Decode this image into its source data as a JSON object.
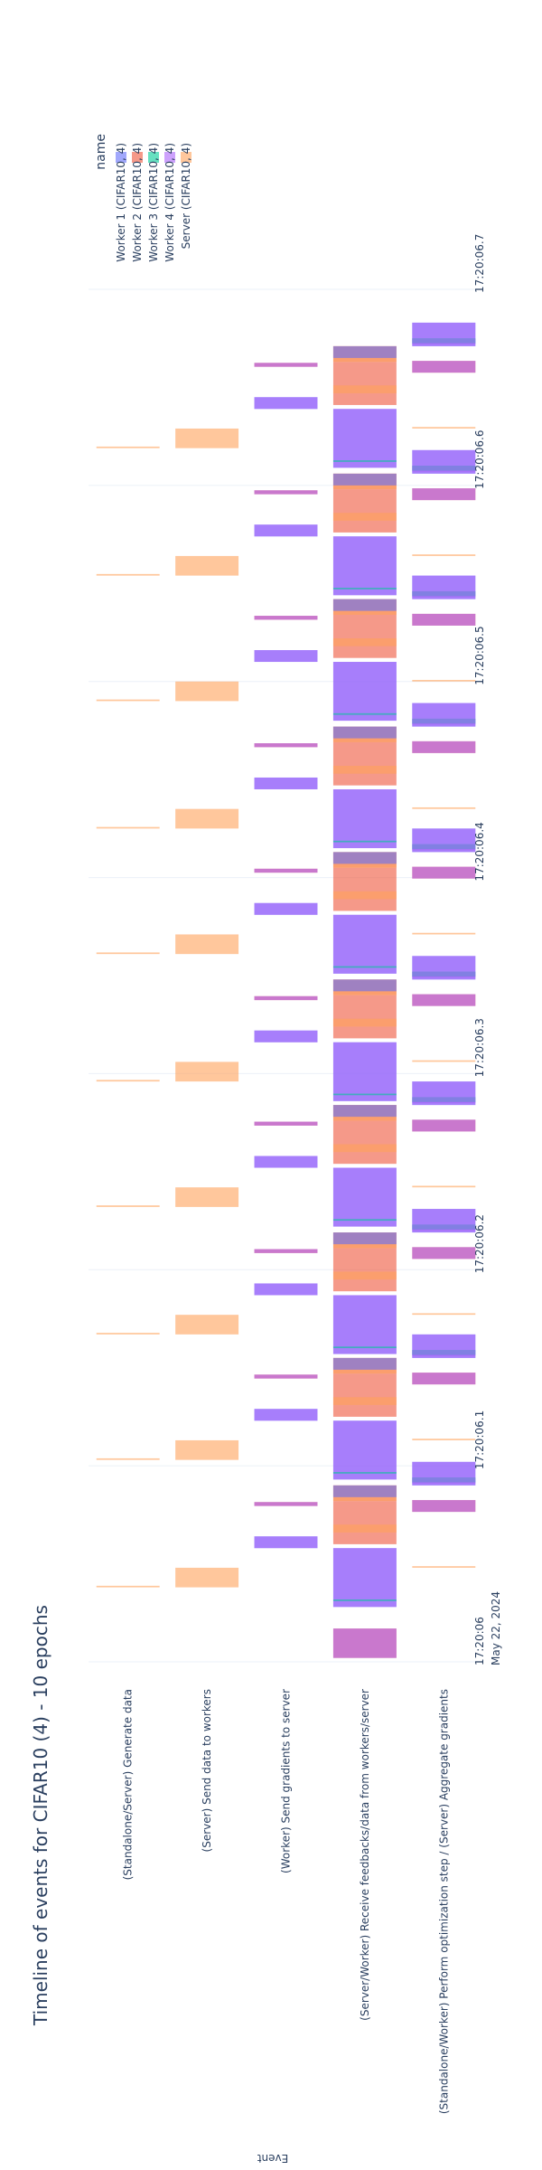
{
  "chart_data": {
    "type": "timeline",
    "title": "Timeline of events for CIFAR10 (4) - 10 epochs",
    "ylabel": "Event",
    "legend_title": "name",
    "legend_position": "top-right",
    "categories": [
      "(Standalone/Server) Generate data",
      "(Server) Send data to workers",
      "(Worker) Send gradients to server",
      "(Server/Worker) Receive feedbacks/data from workers/server",
      "(Standalone/Worker) Perform optimization step / (Server) Aggregate gradients"
    ],
    "x_ticks": [
      "17:20:06",
      "17:20:06.1",
      "17:20:06.2",
      "17:20:06.3",
      "17:20:06.4",
      "17:20:06.5",
      "17:20:06.6",
      "17:20:06.7"
    ],
    "x_tick_date": "May 22, 2024",
    "xlim_seconds": [
      0,
      0.7
    ],
    "series": [
      {
        "name": "Worker 1 (CIFAR10, 4)",
        "color": "#636efa"
      },
      {
        "name": "Worker 2 (CIFAR10, 4)",
        "color": "#ef553b"
      },
      {
        "name": "Worker 3 (CIFAR10, 4)",
        "color": "#00cc96"
      },
      {
        "name": "Worker 4 (CIFAR10, 4)",
        "color": "#ab63fa"
      },
      {
        "name": "Server (CIFAR10, 4)",
        "color": "#ffa15a"
      }
    ],
    "epoch_starts": [
      0.038,
      0.103,
      0.167,
      0.232,
      0.296,
      0.361,
      0.425,
      0.49,
      0.554,
      0.619
    ],
    "epoch_events": [
      {
        "category": 0,
        "series": 4,
        "start": 0.0,
        "duration": 0.0008
      },
      {
        "category": 1,
        "series": 4,
        "start": 0.0,
        "duration": 0.01
      },
      {
        "category": 2,
        "series": 0,
        "start": 0.02,
        "duration": 0.006
      },
      {
        "category": 2,
        "series": 3,
        "start": 0.02,
        "duration": 0.006
      },
      {
        "category": 2,
        "series": 1,
        "start": 0.0415,
        "duration": 0.002
      },
      {
        "category": 2,
        "series": 3,
        "start": 0.0415,
        "duration": 0.002
      },
      {
        "category": 3,
        "series": 0,
        "start": -0.01,
        "duration": 0.03
      },
      {
        "category": 3,
        "series": 3,
        "start": -0.01,
        "duration": 0.03
      },
      {
        "category": 3,
        "series": 2,
        "start": -0.007,
        "duration": 0.0008
      },
      {
        "category": 3,
        "series": 1,
        "start": 0.022,
        "duration": 0.022
      },
      {
        "category": 3,
        "series": 4,
        "start": 0.028,
        "duration": 0.004
      },
      {
        "category": 3,
        "series": 1,
        "start": 0.044,
        "duration": 0.008
      },
      {
        "category": 3,
        "series": 4,
        "start": 0.044,
        "duration": 0.008
      },
      {
        "category": 3,
        "series": 0,
        "start": 0.046,
        "duration": 0.006
      },
      {
        "category": 4,
        "series": 4,
        "start": 0.01,
        "duration": 0.0008
      },
      {
        "category": 4,
        "series": 1,
        "start": 0.0385,
        "duration": 0.006
      },
      {
        "category": 4,
        "series": 3,
        "start": 0.0385,
        "duration": 0.006
      },
      {
        "category": 4,
        "series": 0,
        "start": 0.052,
        "duration": 0.012
      },
      {
        "category": 4,
        "series": 3,
        "start": 0.052,
        "duration": 0.012
      },
      {
        "category": 4,
        "series": 2,
        "start": 0.0535,
        "duration": 0.0025
      },
      {
        "category": 4,
        "series": 3,
        "start": 0.053,
        "duration": 0.003
      }
    ]
  }
}
